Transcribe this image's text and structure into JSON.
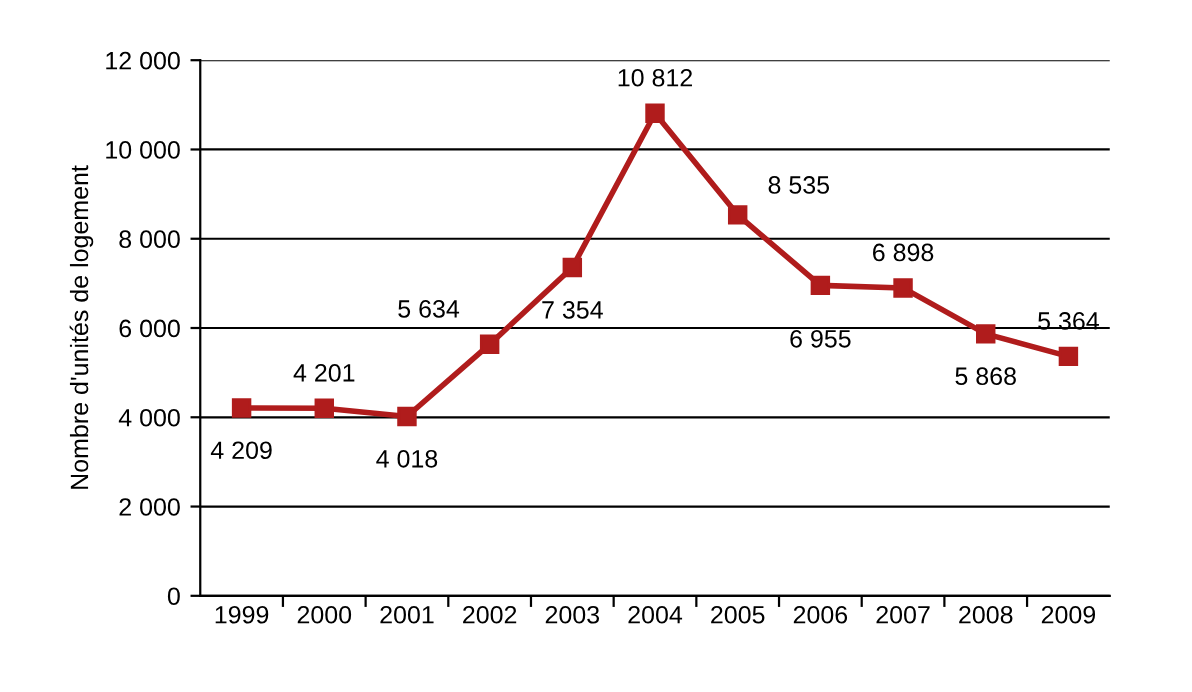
{
  "chart_data": {
    "type": "line",
    "ylabel": "Nombre d'unités de logement",
    "categories": [
      "1999",
      "2000",
      "2001",
      "2002",
      "2003",
      "2004",
      "2005",
      "2006",
      "2007",
      "2008",
      "2009"
    ],
    "series": [
      {
        "color": "#b01c1c",
        "values": [
          4209,
          4201,
          4018,
          5634,
          7354,
          10812,
          8535,
          6955,
          6898,
          5868,
          5364
        ],
        "value_labels": [
          "4 209",
          "4 201",
          "4 018",
          "5 634",
          "7 354",
          "10 812",
          "8 535",
          "6 955",
          "6 898",
          "5 868",
          "5 364"
        ]
      }
    ],
    "ylim": [
      0,
      12000
    ],
    "yticks": [
      0,
      {
        "value": 2000,
        "label": "2 000"
      },
      {
        "value": 4000,
        "label": "4 000"
      },
      {
        "value": 6000,
        "label": "6 000"
      },
      {
        "value": 8000,
        "label": "8 000"
      },
      {
        "value": 10000,
        "label": "10 000"
      },
      {
        "value": 12000,
        "label": "12 000"
      }
    ],
    "grid": "y",
    "marker": "square",
    "line_style": "solid",
    "legend": false
  }
}
